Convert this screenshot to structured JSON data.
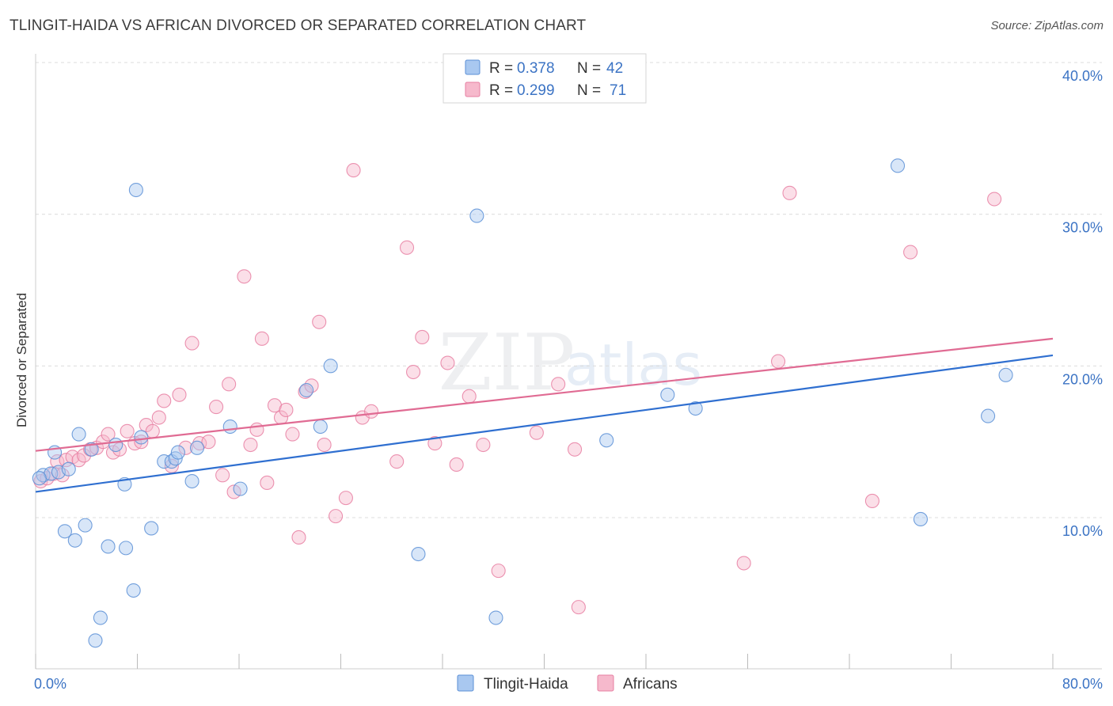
{
  "header": {
    "title": "TLINGIT-HAIDA VS AFRICAN DIVORCED OR SEPARATED CORRELATION CHART",
    "source": "Source: ZipAtlas.com"
  },
  "watermark": {
    "zip": "ZIP",
    "atlas": "atlas"
  },
  "legend_box": [
    {
      "r_label": "R =",
      "r_value": "0.378",
      "n_label": "N =",
      "n_value": "42",
      "series": "Tlingit-Haida"
    },
    {
      "r_label": "R =",
      "r_value": "0.299",
      "n_label": "N =",
      "n_value": "71",
      "series": "Africans"
    }
  ],
  "chart_data": {
    "type": "scatter",
    "title": "TLINGIT-HAIDA VS AFRICAN DIVORCED OR SEPARATED CORRELATION CHART",
    "xlabel": "",
    "ylabel": "Divorced or Separated",
    "xlim": [
      0,
      80
    ],
    "ylim": [
      0,
      42
    ],
    "x_tick_labels": [
      "0.0%",
      "80.0%"
    ],
    "y_ticks": [
      10,
      20,
      30,
      40
    ],
    "y_tick_labels": [
      "10.0%",
      "20.0%",
      "30.0%",
      "40.0%"
    ],
    "grid": true,
    "legend_position": "top-center and bottom",
    "colors": {
      "Tlingit-Haida": {
        "fill": "#a9c8f0",
        "stroke": "#5b8fd6",
        "line": "#2f6fd0"
      },
      "Africans": {
        "fill": "#f6b9cc",
        "stroke": "#e77fa2",
        "line": "#e06b93"
      },
      "tick_label": "#3b73c4"
    },
    "series": [
      {
        "name": "Tlingit-Haida",
        "R": 0.378,
        "N": 42,
        "trend": {
          "x": [
            0,
            80
          ],
          "y": [
            11.7,
            20.7
          ]
        },
        "points": [
          [
            0.6,
            12.8
          ],
          [
            1.2,
            12.9
          ],
          [
            1.5,
            14.3
          ],
          [
            1.8,
            13.0
          ],
          [
            2.6,
            13.2
          ],
          [
            3.4,
            15.5
          ],
          [
            2.3,
            9.1
          ],
          [
            3.1,
            8.5
          ],
          [
            3.9,
            9.5
          ],
          [
            4.4,
            14.5
          ],
          [
            5.7,
            8.1
          ],
          [
            7.1,
            8.0
          ],
          [
            7.0,
            12.2
          ],
          [
            7.7,
            5.2
          ],
          [
            5.1,
            3.4
          ],
          [
            4.7,
            1.9
          ],
          [
            6.3,
            14.8
          ],
          [
            8.3,
            15.3
          ],
          [
            7.9,
            31.6
          ],
          [
            9.1,
            9.3
          ],
          [
            10.1,
            13.7
          ],
          [
            10.7,
            13.7
          ],
          [
            11.0,
            13.9
          ],
          [
            11.2,
            14.3
          ],
          [
            12.3,
            12.4
          ],
          [
            12.7,
            14.6
          ],
          [
            15.3,
            16.0
          ],
          [
            16.1,
            11.9
          ],
          [
            21.3,
            18.4
          ],
          [
            22.4,
            16.0
          ],
          [
            23.2,
            20.0
          ],
          [
            30.1,
            7.6
          ],
          [
            34.7,
            29.9
          ],
          [
            36.2,
            3.4
          ],
          [
            44.9,
            15.1
          ],
          [
            49.7,
            18.1
          ],
          [
            51.9,
            17.2
          ],
          [
            67.8,
            33.2
          ],
          [
            69.6,
            9.9
          ],
          [
            74.9,
            16.7
          ],
          [
            76.3,
            19.4
          ],
          [
            0.3,
            12.6
          ]
        ]
      },
      {
        "name": "Africans",
        "R": 0.299,
        "N": 71,
        "trend": {
          "x": [
            0,
            80
          ],
          "y": [
            14.4,
            21.8
          ]
        },
        "points": [
          [
            0.4,
            12.4
          ],
          [
            0.9,
            12.6
          ],
          [
            1.4,
            12.9
          ],
          [
            1.7,
            13.7
          ],
          [
            2.1,
            12.8
          ],
          [
            2.4,
            13.8
          ],
          [
            2.9,
            14.0
          ],
          [
            3.4,
            13.8
          ],
          [
            3.8,
            14.1
          ],
          [
            4.3,
            14.5
          ],
          [
            4.8,
            14.6
          ],
          [
            5.3,
            15.0
          ],
          [
            5.7,
            15.5
          ],
          [
            6.1,
            14.3
          ],
          [
            6.6,
            14.5
          ],
          [
            7.2,
            15.7
          ],
          [
            7.8,
            14.9
          ],
          [
            8.3,
            15.0
          ],
          [
            8.7,
            16.1
          ],
          [
            9.2,
            15.7
          ],
          [
            9.7,
            16.6
          ],
          [
            10.1,
            17.7
          ],
          [
            10.7,
            13.4
          ],
          [
            11.3,
            18.1
          ],
          [
            11.8,
            14.6
          ],
          [
            12.3,
            21.5
          ],
          [
            12.9,
            14.9
          ],
          [
            13.6,
            15.0
          ],
          [
            14.2,
            17.3
          ],
          [
            14.7,
            12.8
          ],
          [
            15.2,
            18.8
          ],
          [
            15.6,
            11.7
          ],
          [
            16.4,
            25.9
          ],
          [
            16.9,
            14.8
          ],
          [
            17.4,
            15.8
          ],
          [
            17.8,
            21.8
          ],
          [
            18.2,
            12.3
          ],
          [
            18.8,
            17.4
          ],
          [
            19.3,
            16.6
          ],
          [
            19.7,
            17.1
          ],
          [
            20.2,
            15.5
          ],
          [
            20.7,
            8.7
          ],
          [
            21.2,
            18.3
          ],
          [
            21.7,
            18.7
          ],
          [
            22.3,
            22.9
          ],
          [
            22.7,
            14.8
          ],
          [
            23.6,
            10.1
          ],
          [
            24.4,
            11.3
          ],
          [
            25.0,
            32.9
          ],
          [
            25.7,
            16.6
          ],
          [
            26.4,
            17.0
          ],
          [
            28.4,
            13.7
          ],
          [
            29.2,
            27.8
          ],
          [
            29.7,
            19.6
          ],
          [
            30.4,
            21.9
          ],
          [
            31.4,
            14.9
          ],
          [
            32.4,
            20.2
          ],
          [
            33.1,
            13.5
          ],
          [
            34.1,
            18.0
          ],
          [
            35.2,
            14.8
          ],
          [
            36.4,
            6.5
          ],
          [
            39.4,
            15.6
          ],
          [
            41.1,
            18.8
          ],
          [
            42.7,
            4.1
          ],
          [
            42.4,
            14.5
          ],
          [
            55.7,
            7.0
          ],
          [
            58.4,
            20.3
          ],
          [
            59.3,
            31.4
          ],
          [
            65.8,
            11.1
          ],
          [
            68.8,
            27.5
          ],
          [
            75.4,
            31.0
          ]
        ]
      }
    ]
  }
}
